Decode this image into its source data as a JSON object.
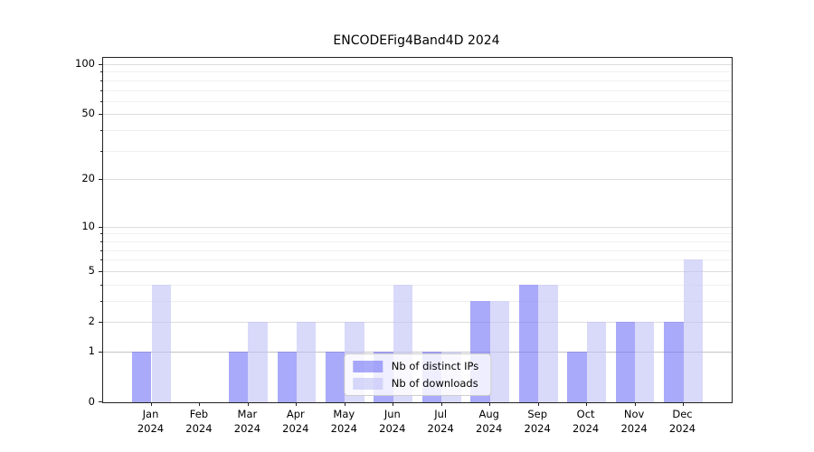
{
  "title": "ENCODEFig4Band4D 2024",
  "colors": {
    "ips_bar": "rgba(113,113,247,0.6)",
    "downloads_bar": "rgba(192,192,247,0.6)",
    "grid_major": "#dddddd",
    "grid_minor": "#f0f0f0",
    "grid_unit_line": "#c4c4c4",
    "axis_frame": "#222222",
    "text": "#000000",
    "legend_border": "#cccccc",
    "legend_bg": "rgba(255,255,255,0.8)"
  },
  "chart_data": {
    "type": "bar",
    "title": "ENCODEFig4Band4D 2024",
    "xlabel": "",
    "ylabel": "",
    "yscale": "log1p",
    "ylim": [
      0,
      100
    ],
    "grid": true,
    "legend_position": "lower center",
    "categories": [
      {
        "month": "Jan",
        "year": "2024"
      },
      {
        "month": "Feb",
        "year": "2024"
      },
      {
        "month": "Mar",
        "year": "2024"
      },
      {
        "month": "Apr",
        "year": "2024"
      },
      {
        "month": "May",
        "year": "2024"
      },
      {
        "month": "Jun",
        "year": "2024"
      },
      {
        "month": "Jul",
        "year": "2024"
      },
      {
        "month": "Aug",
        "year": "2024"
      },
      {
        "month": "Sep",
        "year": "2024"
      },
      {
        "month": "Oct",
        "year": "2024"
      },
      {
        "month": "Nov",
        "year": "2024"
      },
      {
        "month": "Dec",
        "year": "2024"
      }
    ],
    "series": [
      {
        "name": "Nb of distinct IPs",
        "key": "ips",
        "values": [
          1,
          0,
          1,
          1,
          1,
          1,
          1,
          3,
          4,
          1,
          2,
          2
        ]
      },
      {
        "name": "Nb of downloads",
        "key": "downloads",
        "values": [
          4,
          0,
          2,
          2,
          2,
          4,
          1,
          3,
          4,
          2,
          2,
          6
        ]
      }
    ],
    "y_major_ticks": [
      0,
      1,
      2,
      5,
      10,
      20,
      50,
      100
    ],
    "y_minor_ticks": [
      3,
      4,
      6,
      7,
      8,
      9,
      30,
      40,
      60,
      70,
      80,
      90
    ]
  }
}
